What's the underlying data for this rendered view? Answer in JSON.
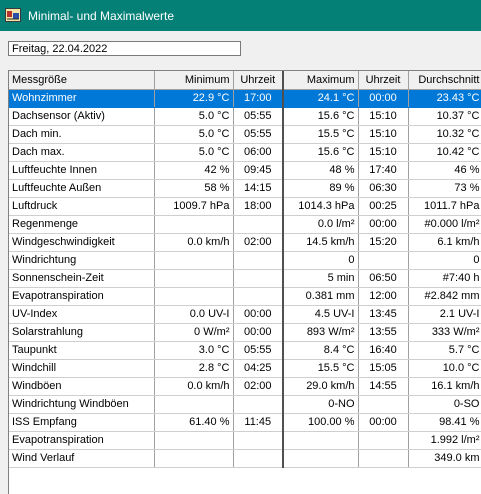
{
  "window": {
    "title": "Minimal- und Maximalwerte",
    "accent": "#058077"
  },
  "date_field": {
    "value": "Freitag, 22.04.2022"
  },
  "table": {
    "headers": [
      "Messgröße",
      "Minimum",
      "Uhrzeit",
      "Maximum",
      "Uhrzeit",
      "Durchschnitt"
    ],
    "selected_row": 0,
    "rows": [
      [
        "Wohnzimmer",
        "22.9 °C",
        "17:00",
        "24.1 °C",
        "00:00",
        "23.43 °C"
      ],
      [
        "Dachsensor (Aktiv)",
        "5.0 °C",
        "05:55",
        "15.6 °C",
        "15:10",
        "10.37 °C"
      ],
      [
        "Dach min.",
        "5.0 °C",
        "05:55",
        "15.5 °C",
        "15:10",
        "10.32 °C"
      ],
      [
        "Dach max.",
        "5.0 °C",
        "06:00",
        "15.6 °C",
        "15:10",
        "10.42 °C"
      ],
      [
        "Luftfeuchte Innen",
        "42 %",
        "09:45",
        "48 %",
        "17:40",
        "46 %"
      ],
      [
        "Luftfeuchte Außen",
        "58 %",
        "14:15",
        "89 %",
        "06:30",
        "73 %"
      ],
      [
        "Luftdruck",
        "1009.7 hPa",
        "18:00",
        "1014.3 hPa",
        "00:25",
        "1011.7 hPa"
      ],
      [
        "Regenmenge",
        "",
        "",
        "0.0 l/m²",
        "00:00",
        "#0.000 l/m²"
      ],
      [
        "Windgeschwindigkeit",
        "0.0 km/h",
        "02:00",
        "14.5 km/h",
        "15:20",
        "6.1 km/h"
      ],
      [
        "Windrichtung",
        "",
        "",
        "0",
        "",
        "0"
      ],
      [
        "Sonnenschein-Zeit",
        "",
        "",
        "5 min",
        "06:50",
        "#7:40 h"
      ],
      [
        "Evapotranspiration",
        "",
        "",
        "0.381 mm",
        "12:00",
        "#2.842 mm"
      ],
      [
        "UV-Index",
        "0.0 UV-I",
        "00:00",
        "4.5 UV-I",
        "13:45",
        "2.1 UV-I"
      ],
      [
        "Solarstrahlung",
        "0 W/m²",
        "00:00",
        "893 W/m²",
        "13:55",
        "333 W/m²"
      ],
      [
        "Taupunkt",
        "3.0 °C",
        "05:55",
        "8.4 °C",
        "16:40",
        "5.7 °C"
      ],
      [
        "Windchill",
        "2.8 °C",
        "04:25",
        "15.5 °C",
        "15:05",
        "10.0 °C"
      ],
      [
        "Windböen",
        "0.0 km/h",
        "02:00",
        "29.0 km/h",
        "14:55",
        "16.1 km/h"
      ],
      [
        "Windrichtung Windböen",
        "",
        "",
        "0-NO",
        "",
        "0-SO"
      ],
      [
        "ISS Empfang",
        "61.40 %",
        "11:45",
        "100.00 %",
        "00:00",
        "98.41 %"
      ],
      [
        "Evapotranspiration",
        "",
        "",
        "",
        "",
        "1.992 l/m²"
      ],
      [
        "Wind Verlauf",
        "",
        "",
        "",
        "",
        "349.0 km"
      ]
    ]
  }
}
